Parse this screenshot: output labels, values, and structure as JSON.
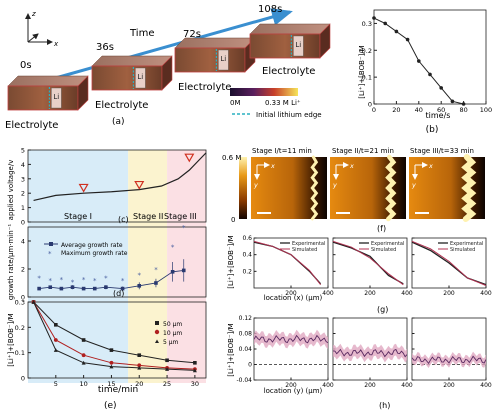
{
  "figure": {
    "panel_a": {
      "time_label": "Time",
      "times": [
        "0s",
        "36s",
        "72s",
        "108s"
      ],
      "electrolyte_label": "Electrolyte",
      "li_label": "Li",
      "axis_x": "x",
      "axis_z": "z",
      "colorbar_min": "0M",
      "colorbar_max": "0.33 M Li⁺",
      "edge_legend": "Initial lithium edge",
      "caption": "(a)"
    },
    "panel_b": {
      "ylabel": "[Li⁺]+[BOB⁻]/M",
      "xlabel": "time/s",
      "caption": "(b)"
    },
    "panel_c": {
      "ylabel": "applied voltage/v",
      "stages": [
        "Stage I",
        "Stage II",
        "Stage III"
      ],
      "caption": "(c)"
    },
    "panel_d": {
      "ylabel": "growth rate/μm·min⁻¹",
      "legend": [
        "Average growth rate",
        "Maximum growth rate"
      ],
      "caption": "(d)"
    },
    "panel_e": {
      "ylabel": "[Li⁺]+[BOB⁻]/M",
      "xlabel": "time/min",
      "legend": [
        "50 μm",
        "10 μm",
        "5 μm"
      ],
      "caption": "(e)"
    },
    "panel_f": {
      "titles": [
        "Stage I/t=11 min",
        "Stage II/t=21 min",
        "Stage III/t=33 min"
      ],
      "colorbar_max": "0.6 M",
      "colorbar_min": "0",
      "axis_x": "x",
      "axis_y": "y",
      "caption": "(f)"
    },
    "panel_g": {
      "ylabel": "[Li⁺]+[BOB⁻]/M",
      "xlabel": "location (x) (μm)",
      "legend": [
        "Experimental",
        "Simulated"
      ],
      "caption": "(g)"
    },
    "panel_h": {
      "ylabel": "[Li⁺]+[BOB⁻]/M",
      "xlabel": "location (y) (μm)",
      "caption": "(h)"
    }
  },
  "chart_data": [
    {
      "id": "b",
      "type": "line",
      "x": [
        0,
        10,
        20,
        30,
        40,
        50,
        60,
        70,
        80
      ],
      "series": [
        {
          "values": [
            0.32,
            0.3,
            0.27,
            0.24,
            0.16,
            0.11,
            0.06,
            0.01,
            0.0
          ]
        }
      ],
      "xlim": [
        0,
        100
      ],
      "xticks": [
        0,
        20,
        40,
        60,
        80,
        100
      ],
      "ylim": [
        0,
        0.35
      ],
      "yticks": [
        0,
        0.1,
        0.2,
        0.3
      ],
      "ytick_labels": [
        "0",
        "0.1",
        "0.2",
        "0.3"
      ]
    },
    {
      "id": "c",
      "type": "line",
      "x": [
        1,
        5,
        10,
        15,
        20,
        24,
        27,
        29,
        30.5,
        32
      ],
      "series": [
        {
          "values": [
            1.5,
            1.85,
            2.0,
            2.1,
            2.25,
            2.5,
            3.0,
            3.6,
            4.2,
            4.8
          ]
        }
      ],
      "markers": [
        {
          "x": 10,
          "y": 2.4
        },
        {
          "x": 20,
          "y": 2.6
        },
        {
          "x": 29,
          "y": 4.5
        }
      ],
      "xlim": [
        0,
        32
      ],
      "ylim": [
        0,
        5
      ],
      "yticks": [
        0,
        1,
        2,
        3,
        4,
        5
      ],
      "stage_bounds": [
        18,
        25
      ]
    },
    {
      "id": "d",
      "type": "scatter",
      "x": [
        2,
        4,
        6,
        8,
        10,
        12,
        14,
        17,
        20,
        23,
        26,
        28
      ],
      "series": [
        {
          "name": "Average growth rate",
          "values": [
            0.6,
            0.7,
            0.6,
            0.7,
            0.6,
            0.6,
            0.7,
            0.6,
            0.8,
            1.0,
            1.8,
            1.9
          ],
          "errors": [
            0.1,
            0.1,
            0.1,
            0.15,
            0.1,
            0.1,
            0.15,
            0.15,
            0.25,
            0.3,
            0.7,
            0.8
          ]
        },
        {
          "name": "Maximum growth rate",
          "values": [
            1.4,
            1.2,
            1.3,
            1.1,
            1.3,
            1.2,
            1.4,
            1.2,
            1.6,
            2.0,
            3.6,
            5.0
          ]
        }
      ],
      "xlim": [
        0,
        32
      ],
      "ylim": [
        0,
        5
      ],
      "yticks": [
        0,
        2,
        4
      ]
    },
    {
      "id": "e",
      "type": "line",
      "x": [
        1,
        5,
        10,
        15,
        20,
        25,
        30
      ],
      "series": [
        {
          "name": "50 μm",
          "values": [
            0.3,
            0.21,
            0.15,
            0.11,
            0.09,
            0.07,
            0.06
          ]
        },
        {
          "name": "10 μm",
          "values": [
            0.3,
            0.15,
            0.09,
            0.06,
            0.05,
            0.04,
            0.035
          ]
        },
        {
          "name": "5 μm",
          "values": [
            0.3,
            0.11,
            0.06,
            0.045,
            0.04,
            0.035,
            0.03
          ]
        }
      ],
      "xlim": [
        0,
        32
      ],
      "xticks": [
        5,
        10,
        15,
        20,
        25,
        30
      ],
      "ylim": [
        0,
        0.3
      ],
      "yticks": [
        0,
        0.1,
        0.2,
        0.3
      ],
      "ytick_labels": [
        "0",
        "0.1",
        "0.2",
        "0.3"
      ]
    },
    {
      "id": "g",
      "type": "line",
      "xlim": [
        0,
        400
      ],
      "xticks": [
        200,
        400
      ],
      "ylim": [
        0,
        0.6
      ],
      "yticks": [
        0.2,
        0.4,
        0.6
      ],
      "panels": [
        {
          "x": [
            0,
            100,
            200,
            300,
            360
          ],
          "experimental": [
            0.55,
            0.5,
            0.4,
            0.2,
            0.05
          ],
          "simulated": [
            0.56,
            0.5,
            0.4,
            0.21,
            0.04
          ]
        },
        {
          "x": [
            0,
            100,
            200,
            300,
            380
          ],
          "experimental": [
            0.55,
            0.48,
            0.38,
            0.15,
            0.05
          ],
          "simulated": [
            0.56,
            0.49,
            0.36,
            0.17,
            0.04
          ]
        },
        {
          "x": [
            0,
            100,
            200,
            300,
            400
          ],
          "experimental": [
            0.55,
            0.45,
            0.3,
            0.12,
            0.04
          ],
          "simulated": [
            0.56,
            0.47,
            0.32,
            0.12,
            0.03
          ]
        }
      ]
    },
    {
      "id": "h",
      "type": "line",
      "xlim": [
        0,
        400
      ],
      "xticks": [
        200,
        400
      ],
      "ylim": [
        -0.04,
        0.12
      ],
      "yticks": [
        -0.04,
        0,
        0.04,
        0.08,
        0.12
      ],
      "ytick_labels": [
        "-0.04",
        "0",
        "0.04",
        "0.08",
        "0.12"
      ],
      "panels": [
        {
          "mean": 0.065,
          "band": 0.015
        },
        {
          "mean": 0.03,
          "band": 0.015
        },
        {
          "mean": 0.012,
          "band": 0.012
        }
      ]
    }
  ]
}
